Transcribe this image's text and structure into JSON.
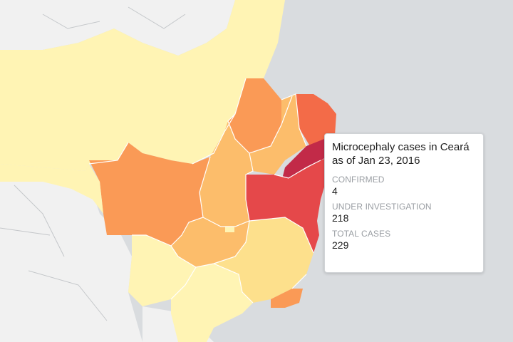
{
  "map": {
    "fill_scale": {
      "lowest": "#fff4b4",
      "low": "#fde08c",
      "mid": "#fcbd6b",
      "high": "#fa9a56",
      "higher": "#f36b48",
      "highest": "#e5484a",
      "selected": "#c22a48"
    },
    "background_color": "#d9dcdf",
    "land_outside_color": "#f1f1f1"
  },
  "tooltip": {
    "title_line1": "Microcephaly cases in Ceará",
    "title_line2": "as of Jan 23, 2016",
    "confirmed_label": "CONFIRMED",
    "confirmed_value": "4",
    "investigation_label": "UNDER INVESTIGATION",
    "investigation_value": "218",
    "total_label": "TOTAL CASES",
    "total_value": "229"
  }
}
